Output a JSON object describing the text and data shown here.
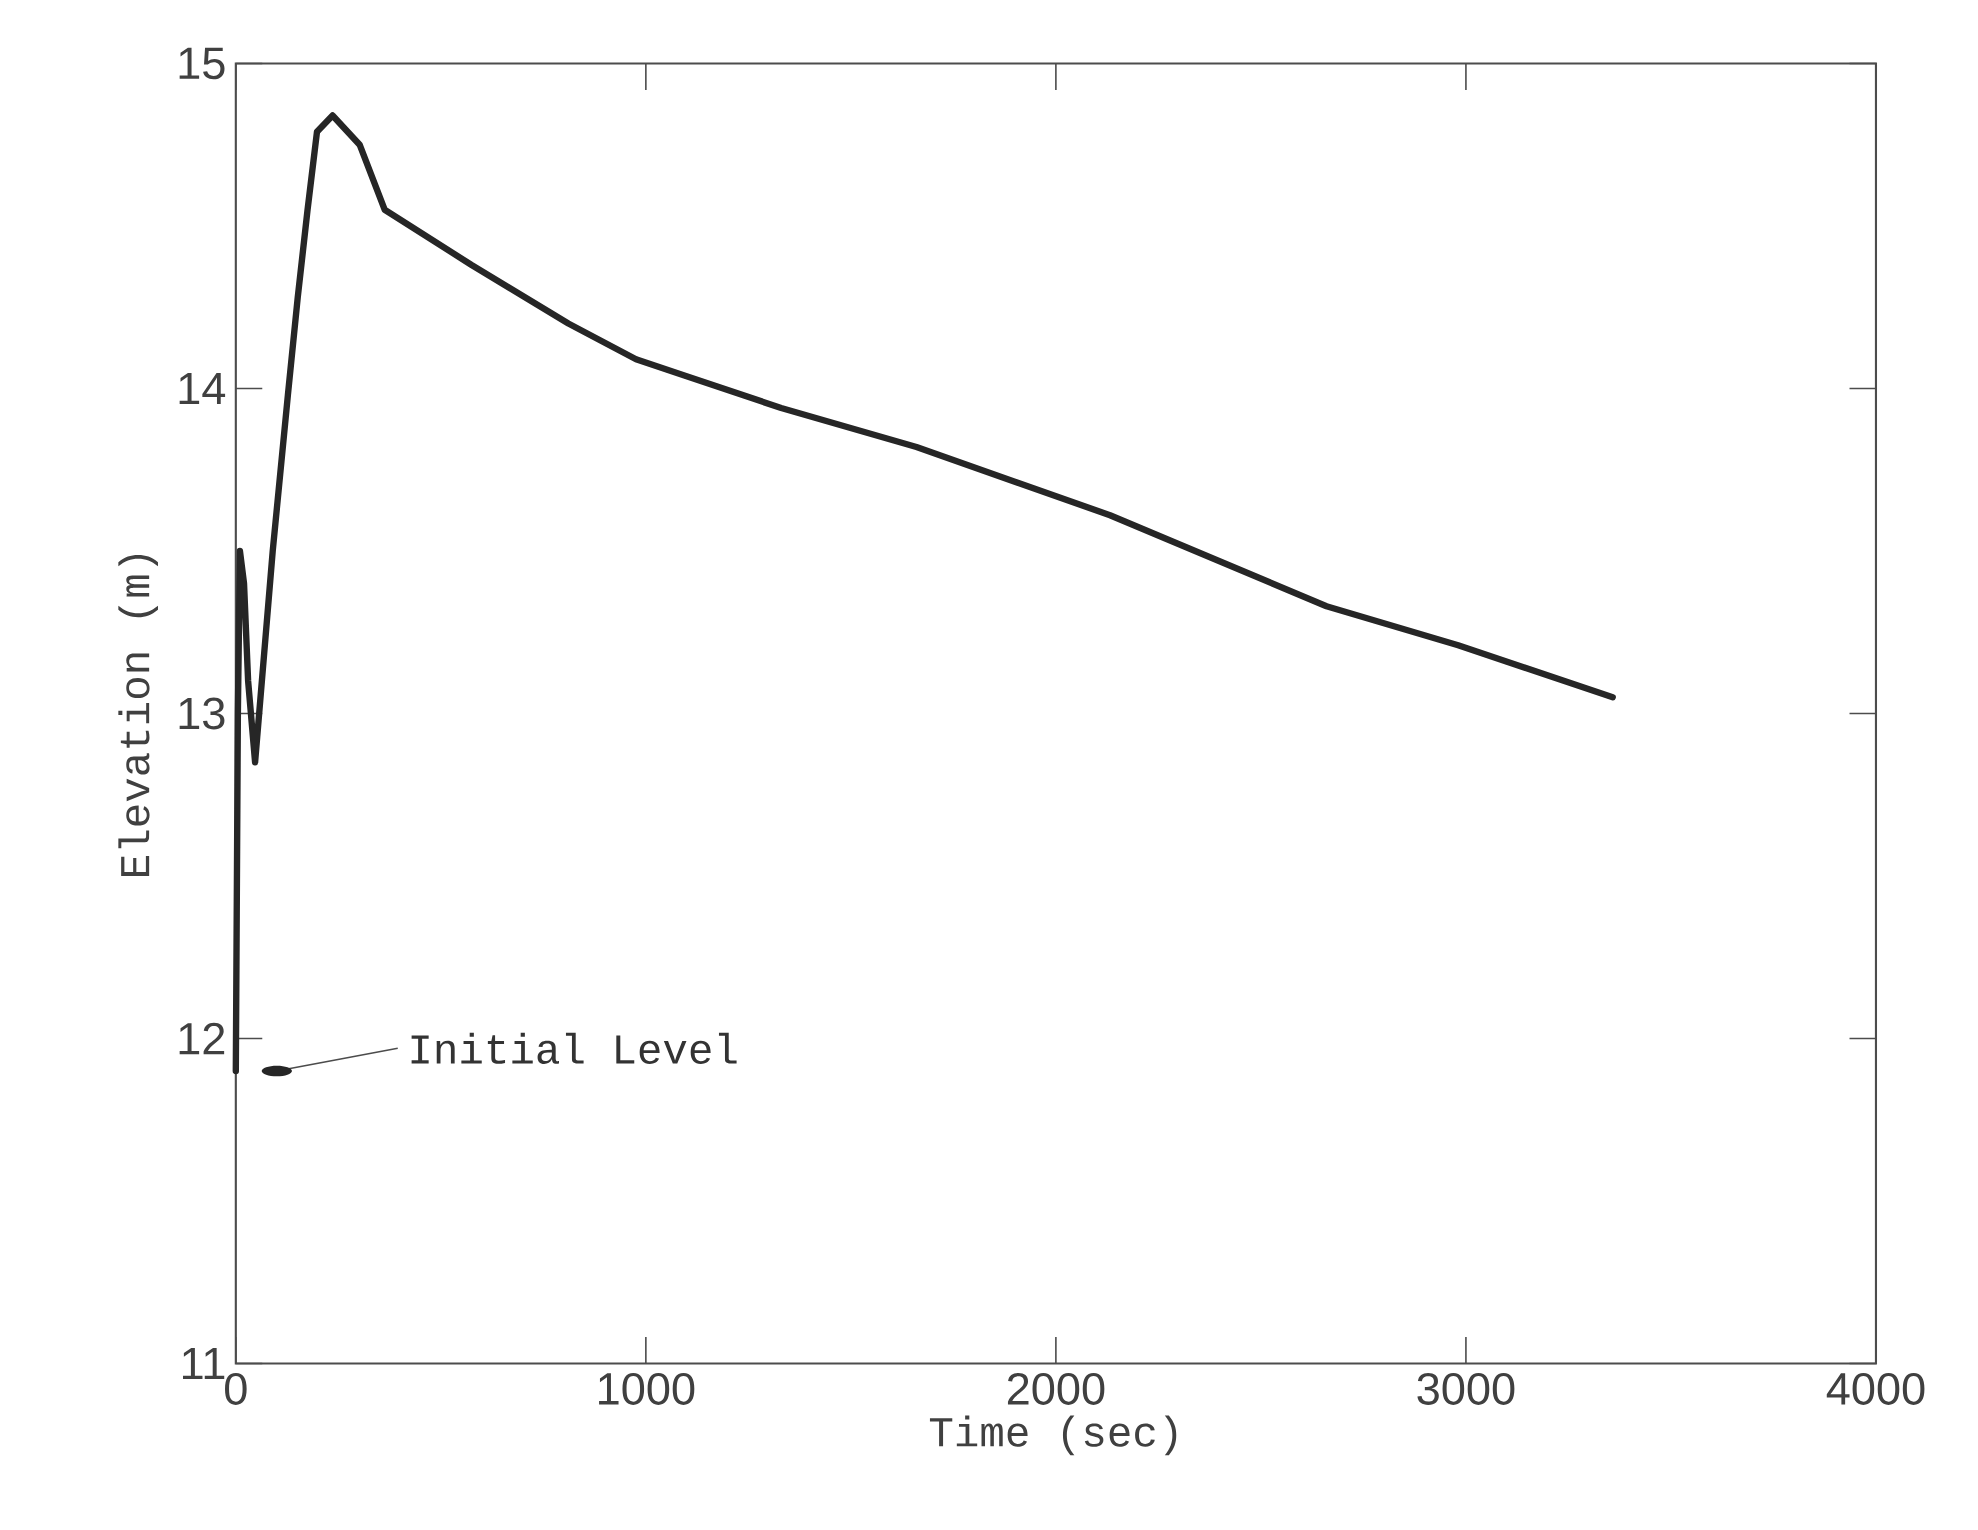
{
  "chart_data": {
    "type": "line",
    "xlabel": "Time (sec)",
    "ylabel": "Elevation (m)",
    "xlim": [
      0,
      4000
    ],
    "ylim": [
      11,
      15
    ],
    "xticks": [
      0,
      1000,
      2000,
      3000,
      4000
    ],
    "yticks": [
      11,
      12,
      13,
      14,
      15
    ],
    "series": [
      {
        "color": "#262626",
        "x": [
          0,
          5,
          10,
          20,
          30,
          47,
          90,
          127,
          151,
          175,
          198,
          236,
          302,
          363,
          575,
          811,
          976,
          1094,
          1330,
          1660,
          2132,
          2660,
          2981,
          3358
        ],
        "values": [
          11.9,
          13.0,
          13.5,
          13.4,
          13.1,
          12.85,
          13.5,
          13.98,
          14.28,
          14.55,
          14.79,
          14.84,
          14.75,
          14.55,
          14.38,
          14.2,
          14.09,
          14.04,
          13.94,
          13.82,
          13.61,
          13.33,
          13.21,
          13.05
        ]
      }
    ],
    "annotations": [
      {
        "text": "Initial Level",
        "x": 100,
        "y": 11.9
      }
    ],
    "marker": "none",
    "line_style": "solid"
  }
}
